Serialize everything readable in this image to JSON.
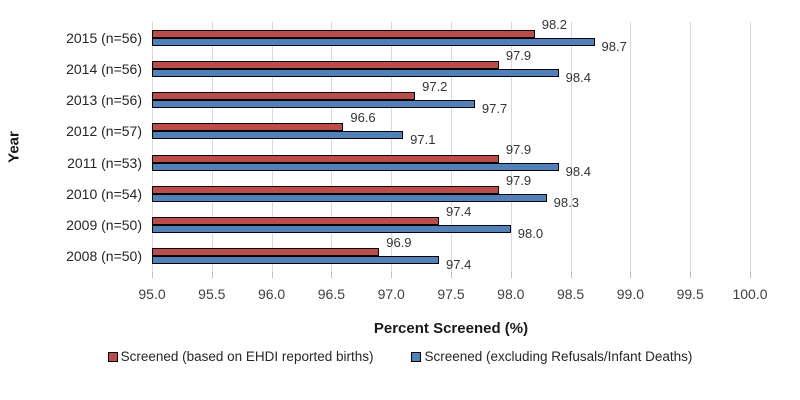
{
  "chart_data": {
    "type": "bar",
    "orientation": "horizontal",
    "title": "",
    "xlabel": "Percent Screened (%)",
    "ylabel": "Year",
    "xlim": [
      95.0,
      100.0
    ],
    "xticks": [
      "95.0",
      "95.5",
      "96.0",
      "96.5",
      "97.0",
      "97.5",
      "98.0",
      "98.5",
      "99.0",
      "99.5",
      "100.0"
    ],
    "grid": true,
    "legend_position": "bottom",
    "categories": [
      "2015 (n=56)",
      "2014 (n=56)",
      "2013 (n=56)",
      "2012 (n=57)",
      "2011 (n=53)",
      "2010 (n=54)",
      "2009 (n=50)",
      "2008 (n=50)"
    ],
    "series": [
      {
        "name": "Screened (based on EHDI reported births)",
        "color": "#BE4B48",
        "values": [
          98.2,
          97.9,
          97.2,
          96.6,
          97.9,
          97.9,
          97.4,
          96.9
        ]
      },
      {
        "name": "Screened (excluding Refusals/Infant Deaths)",
        "color": "#4F81BD",
        "values": [
          98.7,
          98.4,
          97.7,
          97.1,
          98.4,
          98.3,
          98.0,
          97.4
        ]
      }
    ],
    "colors": {
      "background": "#FFFFFF",
      "gridline": "#D9D9D9",
      "tick": "#BFBFBF",
      "bar_border": "#000000",
      "text": "#262626"
    }
  }
}
